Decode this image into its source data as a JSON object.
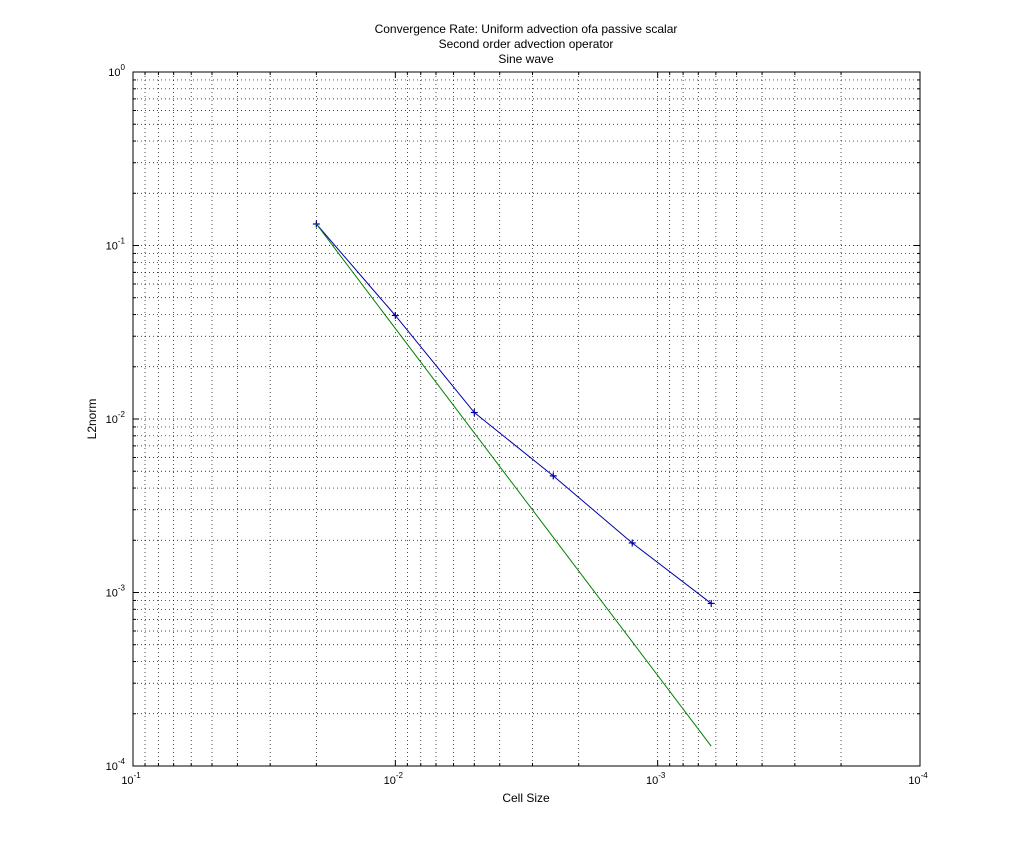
{
  "chart_data": {
    "type": "line",
    "title": "Convergence Rate: Uniform advection ofa passive scalar",
    "subtitle": [
      "Second order advection operator",
      "Sine wave"
    ],
    "xlabel": "Cell Size",
    "ylabel": "L2norm",
    "xscale": "log",
    "yscale": "log",
    "x_reversed": true,
    "xlim": [
      0.1,
      0.0001
    ],
    "ylim": [
      0.0001,
      1
    ],
    "grid": true,
    "x_ticks": [
      {
        "base": "10",
        "exp": "-1",
        "value": 0.1
      },
      {
        "base": "10",
        "exp": "-2",
        "value": 0.01
      },
      {
        "base": "10",
        "exp": "-3",
        "value": 0.001
      },
      {
        "base": "10",
        "exp": "-4",
        "value": 0.0001
      }
    ],
    "y_ticks": [
      {
        "base": "10",
        "exp": "0",
        "value": 1
      },
      {
        "base": "10",
        "exp": "-1",
        "value": 0.1
      },
      {
        "base": "10",
        "exp": "-2",
        "value": 0.01
      },
      {
        "base": "10",
        "exp": "-3",
        "value": 0.001
      },
      {
        "base": "10",
        "exp": "-4",
        "value": 0.0001
      }
    ],
    "series": [
      {
        "color": "#0000aa",
        "marker": "+",
        "x": [
          0.02,
          0.01,
          0.005,
          0.0025,
          0.00125,
          0.000625
        ],
        "y": [
          0.133,
          0.0395,
          0.0109,
          0.0047,
          0.00193,
          0.000865
        ]
      },
      {
        "color": "#008000",
        "marker": "none",
        "x": [
          0.02,
          0.000625
        ],
        "y": [
          0.133,
          0.00013
        ]
      }
    ]
  }
}
